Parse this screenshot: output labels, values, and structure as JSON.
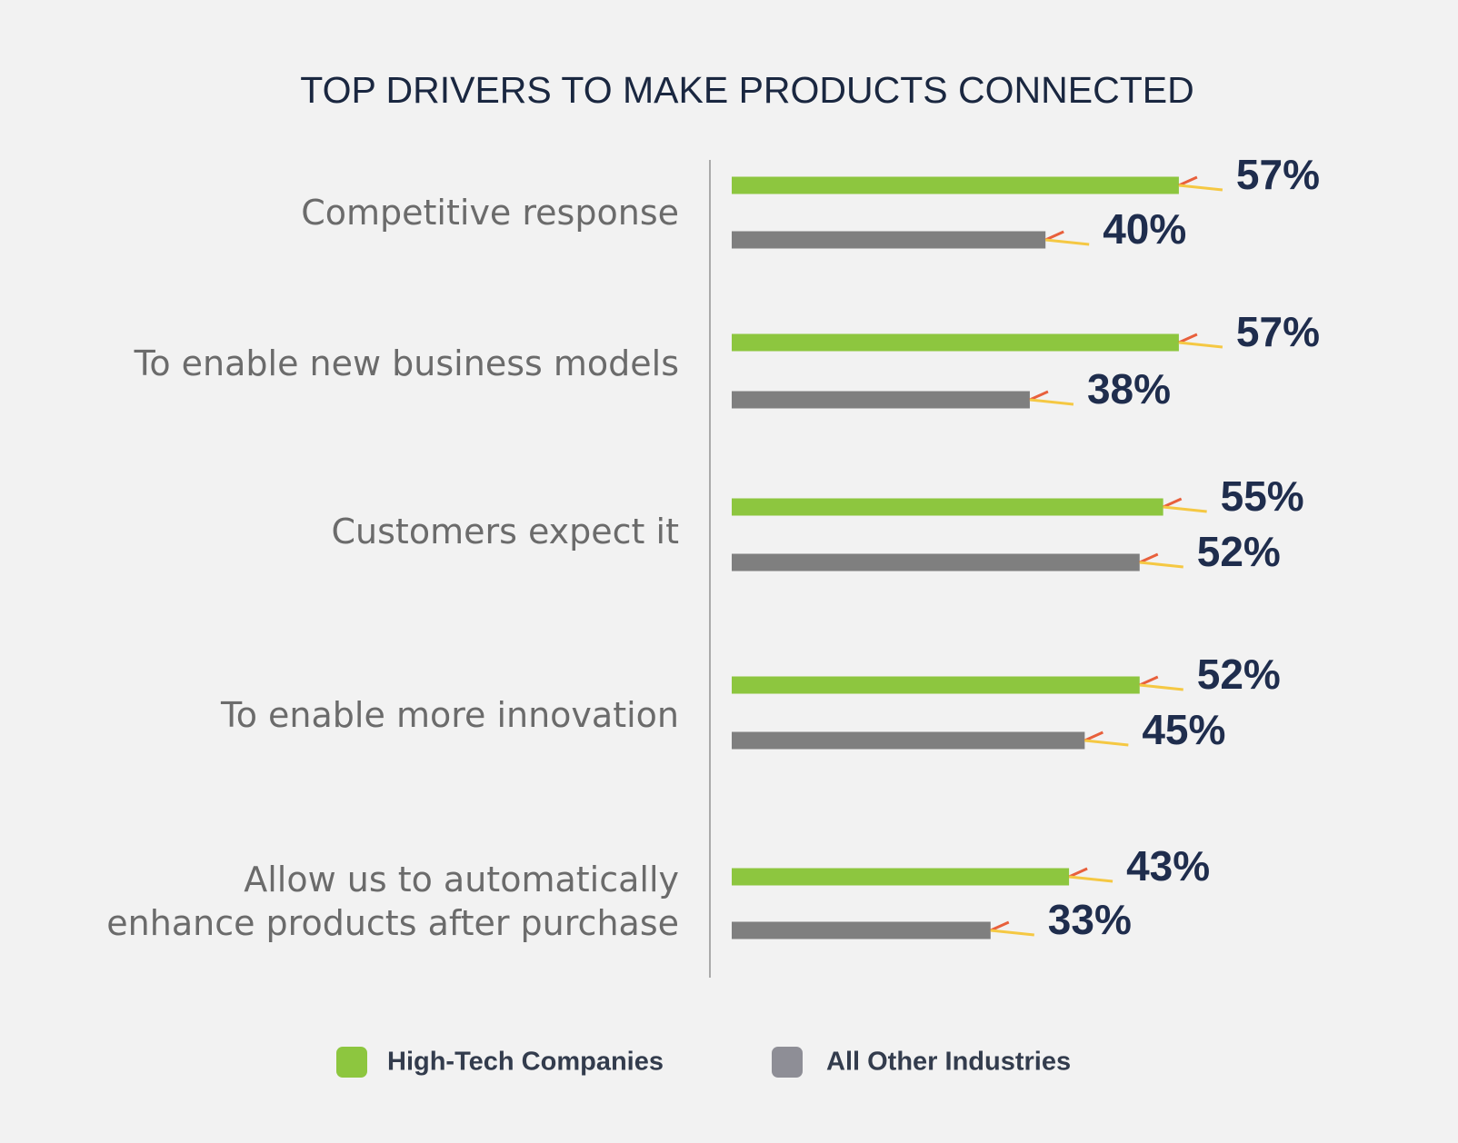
{
  "chart_data": {
    "type": "bar",
    "orientation": "horizontal",
    "title": "TOP DRIVERS TO MAKE PRODUCTS CONNECTED",
    "categories": [
      "Competitive response",
      "To enable new business models",
      "Customers expect it",
      "To enable more innovation",
      "Allow us to automatically\nenhance products after purchase"
    ],
    "series": [
      {
        "name": "High-Tech Companies",
        "color": "#8dc63f",
        "values": [
          57,
          57,
          55,
          52,
          43
        ],
        "value_labels": [
          "57%",
          "57%",
          "55%",
          "52%",
          "43%"
        ]
      },
      {
        "name": "All Other Industries",
        "color": "#7f7f7f",
        "values": [
          40,
          38,
          52,
          45,
          33
        ],
        "value_labels": [
          "40%",
          "38%",
          "52%",
          "45%",
          "33%"
        ]
      }
    ]
  }
}
